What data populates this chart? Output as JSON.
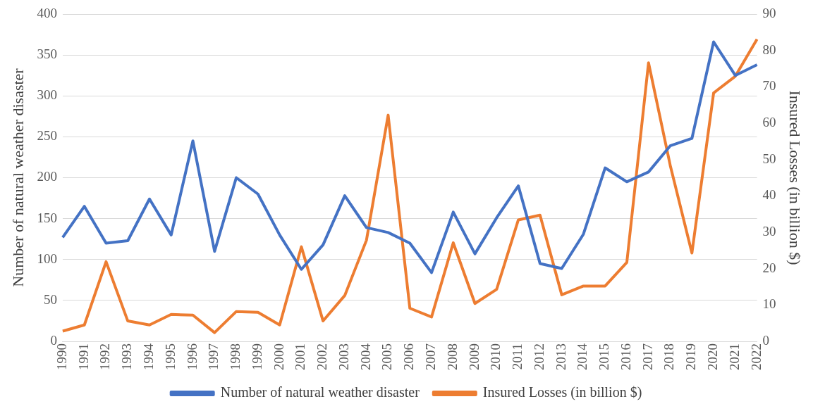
{
  "chart_data": {
    "type": "line",
    "categories": [
      "1990",
      "1991",
      "1992",
      "1993",
      "1994",
      "1995",
      "1996",
      "1997",
      "1998",
      "1999",
      "2000",
      "2001",
      "2002",
      "2003",
      "2004",
      "2005",
      "2006",
      "2007",
      "2008",
      "2009",
      "2010",
      "2011",
      "2012",
      "2013",
      "2014",
      "2015",
      "2016",
      "2017",
      "2018",
      "2019",
      "2020",
      "2021",
      "2022"
    ],
    "ylabel": "Number of natural weather disaster",
    "y2label": "Insured Losses (in billion $)",
    "ylim": [
      0,
      400
    ],
    "yticks": [
      0,
      50,
      100,
      150,
      200,
      250,
      300,
      350,
      400
    ],
    "y2lim": [
      0,
      90
    ],
    "y2ticks": [
      0,
      10,
      20,
      30,
      40,
      50,
      60,
      70,
      80,
      90
    ],
    "grid": "y",
    "legend": "bottom",
    "marker": "none",
    "series": [
      {
        "name": "Number of natural weather disaster",
        "color": "#4472c4",
        "values": [
          127,
          165,
          120,
          123,
          174,
          130,
          245,
          110,
          200,
          180,
          130,
          88,
          118,
          178,
          139,
          133,
          120,
          84,
          158,
          107,
          151,
          190,
          95,
          89,
          131,
          212,
          195,
          207,
          239,
          248,
          366,
          325,
          338
        ]
      },
      {
        "name": "Insured Losses (in billion $)",
        "color": "#ed7d31",
        "axis": "y2",
        "values": [
          2.8,
          4.5,
          21.9,
          5.6,
          4.5,
          7.4,
          7.2,
          2.4,
          8.2,
          8.0,
          4.5,
          26,
          5.6,
          12.6,
          27.8,
          62.2,
          9.1,
          6.7,
          27.1,
          10.4,
          14.3,
          33.4,
          34.7,
          12.8,
          15.2,
          15.2,
          21.7,
          76.6,
          48.4,
          24.3,
          68.3,
          72.9,
          83.1
        ]
      }
    ]
  }
}
